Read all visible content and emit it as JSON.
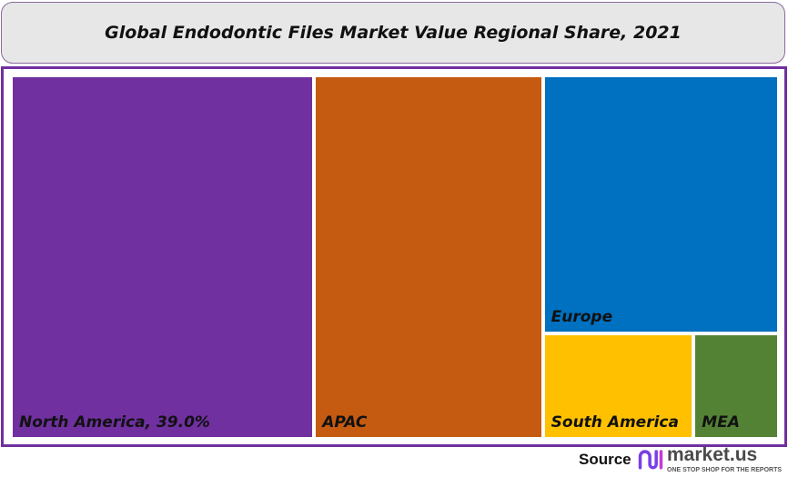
{
  "chart_data": {
    "type": "treemap",
    "title": "Global Endodontic Files Market Value Regional Share, 2021",
    "series": [
      {
        "name": "North America",
        "label": "North America, 39.0%",
        "value": 39.0,
        "color": "#7030a0"
      },
      {
        "name": "APAC",
        "label": "APAC",
        "value": 29.6,
        "color": "#c55a11"
      },
      {
        "name": "Europe",
        "label": "Europe",
        "value": 21.6,
        "color": "#0070c0"
      },
      {
        "name": "South America",
        "label": "South America",
        "value": 5.6,
        "color": "#ffc000"
      },
      {
        "name": "MEA",
        "label": "MEA",
        "value": 3.1,
        "color": "#548235"
      }
    ]
  },
  "footer": {
    "source_label": "Source",
    "logo_text": "market.us",
    "logo_tagline": "ONE STOP SHOP FOR THE REPORTS"
  }
}
